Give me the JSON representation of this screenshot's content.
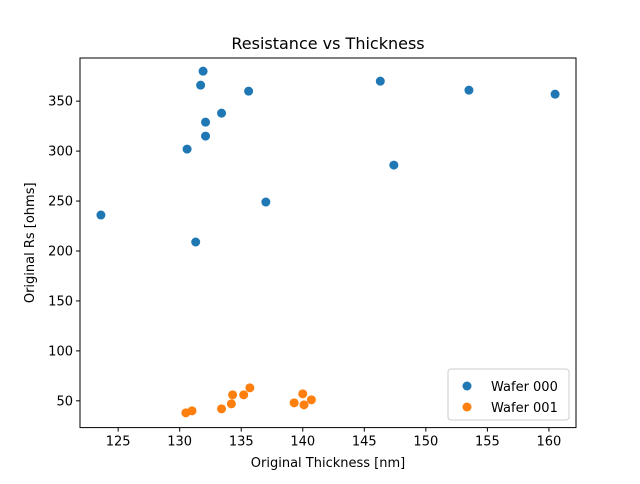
{
  "chart_data": {
    "type": "scatter",
    "title": "Resistance vs Thickness",
    "xlabel": "Original Thickness [nm]",
    "ylabel": "Original Rs [ohms]",
    "xlim": [
      121.9,
      162.2
    ],
    "ylim": [
      23.2,
      393.2
    ],
    "xticks": [
      125,
      130,
      135,
      140,
      145,
      150,
      155,
      160
    ],
    "yticks": [
      50,
      100,
      150,
      200,
      250,
      300,
      350
    ],
    "grid": false,
    "legend_position": "lower-right",
    "series": [
      {
        "name": "Wafer 000",
        "color": "#1f77b4",
        "points": [
          {
            "x": 123.6,
            "y": 236
          },
          {
            "x": 130.6,
            "y": 302
          },
          {
            "x": 131.3,
            "y": 209
          },
          {
            "x": 131.7,
            "y": 366
          },
          {
            "x": 131.9,
            "y": 380
          },
          {
            "x": 132.1,
            "y": 329
          },
          {
            "x": 132.1,
            "y": 315
          },
          {
            "x": 133.4,
            "y": 338
          },
          {
            "x": 135.6,
            "y": 360
          },
          {
            "x": 137.0,
            "y": 249
          },
          {
            "x": 146.3,
            "y": 370
          },
          {
            "x": 147.4,
            "y": 286
          },
          {
            "x": 153.5,
            "y": 361
          },
          {
            "x": 160.5,
            "y": 357
          }
        ]
      },
      {
        "name": "Wafer 001",
        "color": "#ff7f0e",
        "points": [
          {
            "x": 130.5,
            "y": 38
          },
          {
            "x": 131.0,
            "y": 40
          },
          {
            "x": 133.4,
            "y": 42
          },
          {
            "x": 134.2,
            "y": 47
          },
          {
            "x": 134.3,
            "y": 56
          },
          {
            "x": 135.2,
            "y": 56
          },
          {
            "x": 135.7,
            "y": 63
          },
          {
            "x": 139.3,
            "y": 48
          },
          {
            "x": 140.0,
            "y": 57
          },
          {
            "x": 140.1,
            "y": 46
          },
          {
            "x": 140.7,
            "y": 51
          }
        ]
      }
    ]
  }
}
